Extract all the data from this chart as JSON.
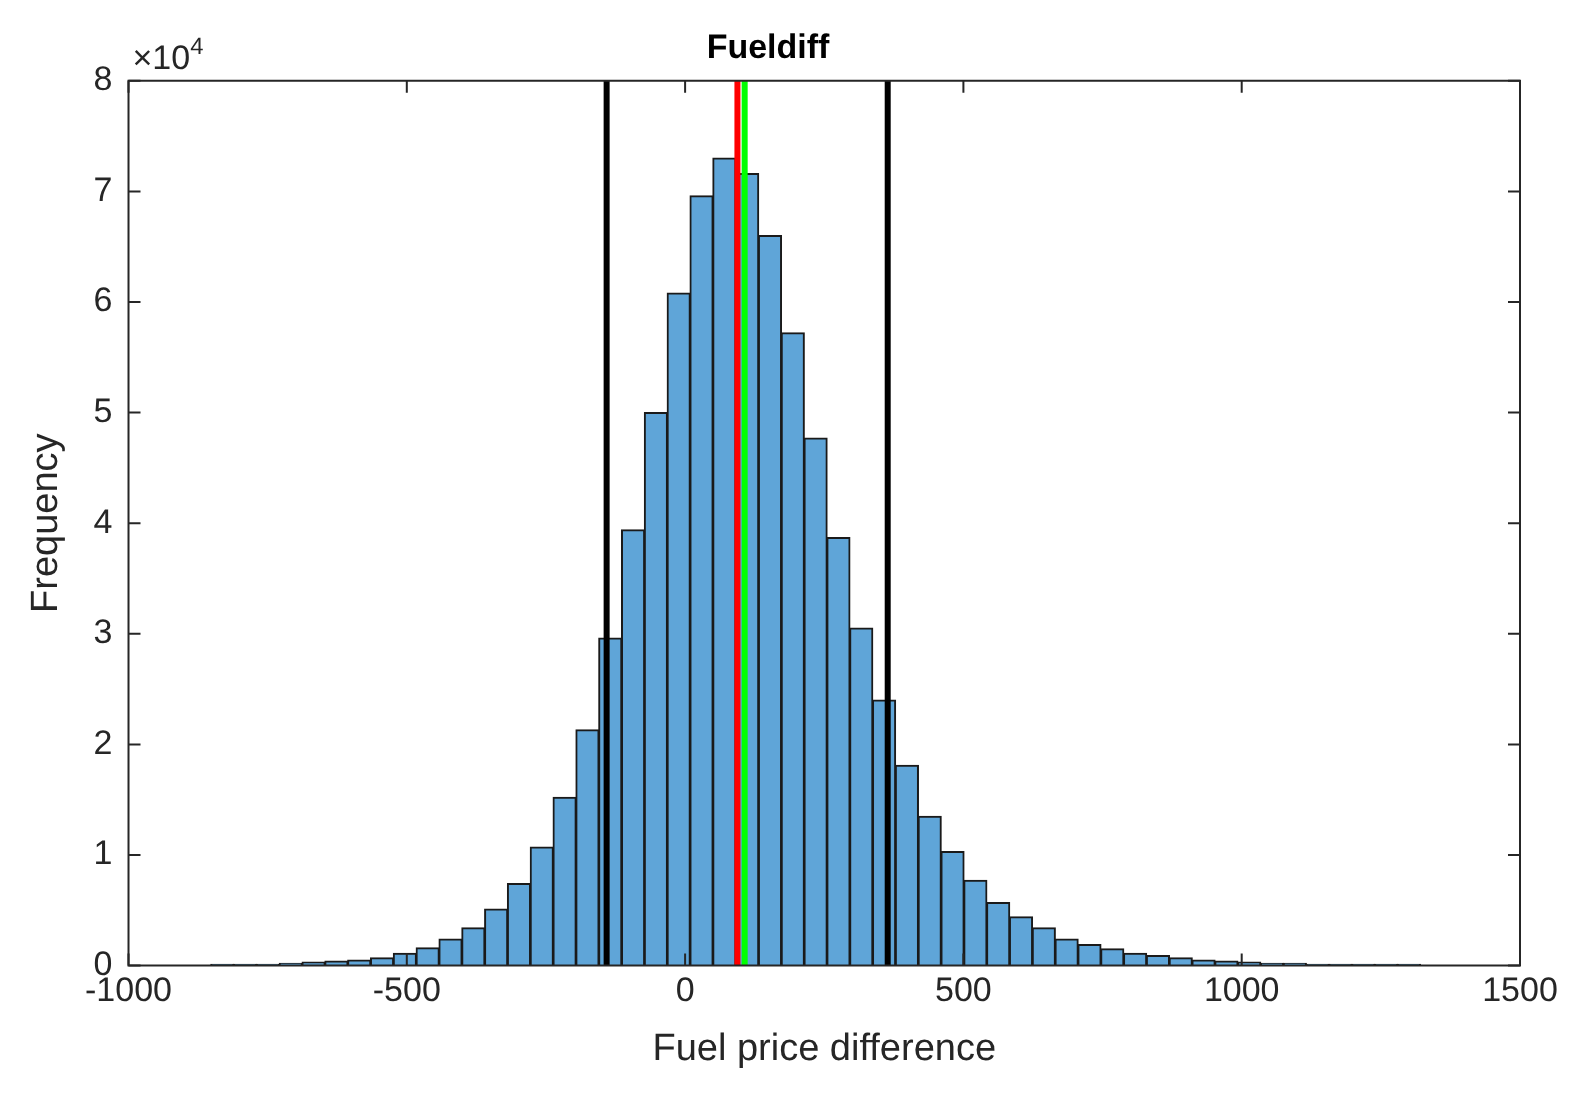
{
  "chart_data": {
    "type": "histogram",
    "title": "Fueldiff",
    "xlabel": "Fuel price difference",
    "ylabel": "Frequency",
    "annotations": [
      "×10$^{4}$"
    ],
    "bins": [
      -975,
      -934,
      -893,
      -852,
      -811,
      -770,
      -729,
      -688,
      -647,
      -606,
      -565,
      -524,
      -483,
      -442,
      -401,
      -360,
      -319,
      -278,
      -237,
      -196,
      -155,
      -114,
      -73,
      -32,
      9,
      50,
      91,
      132,
      173,
      214,
      255,
      296,
      337,
      378,
      419,
      460,
      501,
      542,
      583,
      624,
      665,
      706,
      747,
      788,
      829,
      870,
      911,
      952,
      993,
      1034,
      1075,
      1116,
      1157,
      1198,
      1239,
      1280,
      1321,
      1362,
      1403,
      1444,
      1485
    ],
    "values": [
      0,
      0,
      0,
      0.01,
      0.01,
      0.01,
      0.02,
      0.03,
      0.04,
      0.05,
      0.07,
      0.11,
      0.16,
      0.24,
      0.34,
      0.51,
      0.74,
      1.07,
      1.52,
      2.13,
      2.96,
      3.94,
      5.0,
      6.08,
      6.96,
      7.3,
      7.16,
      6.6,
      5.72,
      4.77,
      3.87,
      3.05,
      2.4,
      1.81,
      1.35,
      1.03,
      0.77,
      0.57,
      0.44,
      0.34,
      0.24,
      0.19,
      0.15,
      0.11,
      0.09,
      0.07,
      0.05,
      0.04,
      0.03,
      0.02,
      0.02,
      0.01,
      0.01,
      0.01,
      0.01,
      0.01,
      0,
      0,
      0,
      0
    ],
    "color": "#5fa5d8",
    "xlim": [
      -1000,
      1500
    ],
    "xticks": [
      -1000,
      -500,
      0,
      500,
      1000,
      1500
    ],
    "ylim": [
      0,
      8
    ],
    "yticks": [
      0,
      1,
      2,
      3,
      4,
      5,
      6,
      7,
      8
    ],
    "ref_lines": [
      {
        "axis": "x",
        "value": -141,
        "color": "#000000"
      },
      {
        "axis": "x",
        "value": 364,
        "color": "#000000"
      },
      {
        "axis": "x",
        "value": 94,
        "color": "#ff0000"
      },
      {
        "axis": "x",
        "value": 107,
        "color": "#00ff00"
      }
    ],
    "grid": false,
    "legend": false
  }
}
